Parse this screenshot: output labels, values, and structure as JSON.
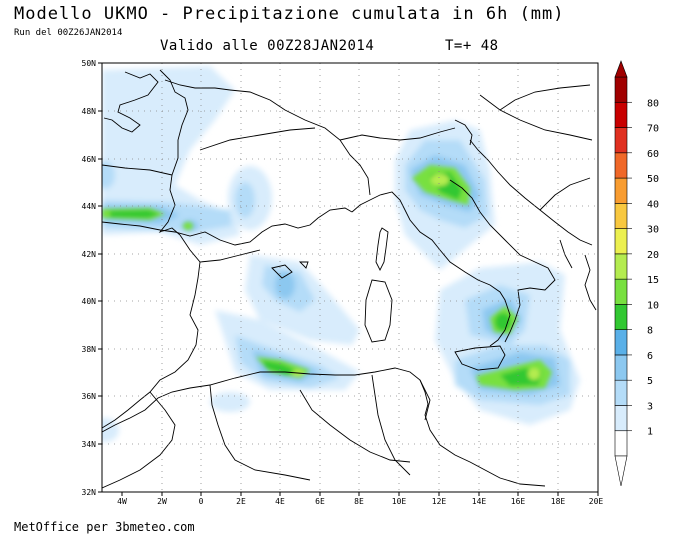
{
  "header": {
    "title": "Modello UKMO - Precipitazione cumulata in 6h (mm)",
    "run": "Run del 00Z26JAN2014",
    "valid": "Valido alle 00Z28JAN2014",
    "timestep": "T=+ 48"
  },
  "footer": {
    "credit": "MetOffice per 3bmeteo.com"
  },
  "map": {
    "lat_labels": [
      "50N",
      "48N",
      "46N",
      "44N",
      "42N",
      "40N",
      "38N",
      "36N",
      "34N",
      "32N"
    ],
    "lon_labels": [
      "4W",
      "2W",
      "0",
      "2E",
      "4E",
      "6E",
      "8E",
      "10E",
      "12E",
      "14E",
      "16E",
      "18E",
      "20E"
    ]
  },
  "legend": {
    "levels": [
      "1",
      "3",
      "5",
      "6",
      "8",
      "10",
      "15",
      "20",
      "30",
      "40",
      "50",
      "60",
      "70",
      "80"
    ],
    "colors": [
      "#ffffff",
      "#d8ecfc",
      "#b4dcf8",
      "#8cc8f0",
      "#5ab0e8",
      "#32c832",
      "#78e040",
      "#b4ec50",
      "#ecf050",
      "#f8c840",
      "#f89c30",
      "#f06828",
      "#e03020",
      "#c80000",
      "#a00000"
    ]
  }
}
